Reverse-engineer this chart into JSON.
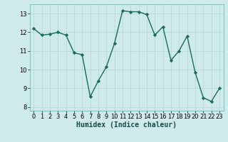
{
  "x": [
    0,
    1,
    2,
    3,
    4,
    5,
    6,
    7,
    8,
    9,
    10,
    11,
    12,
    13,
    14,
    15,
    16,
    17,
    18,
    19,
    20,
    21,
    22,
    23
  ],
  "y": [
    12.2,
    11.85,
    11.9,
    12.0,
    11.85,
    10.9,
    10.8,
    8.55,
    9.4,
    10.15,
    11.4,
    13.15,
    13.1,
    13.1,
    12.95,
    11.85,
    12.3,
    10.5,
    11.0,
    11.8,
    9.85,
    8.5,
    8.3,
    9.0
  ],
  "line_color": "#1a6b5a",
  "marker": "D",
  "markersize": 2.2,
  "linewidth": 1.0,
  "xlabel": "Humidex (Indice chaleur)",
  "xlabel_fontsize": 7,
  "xlim": [
    -0.5,
    23.5
  ],
  "ylim": [
    7.8,
    13.5
  ],
  "yticks": [
    8,
    9,
    10,
    11,
    12,
    13
  ],
  "xticks": [
    0,
    1,
    2,
    3,
    4,
    5,
    6,
    7,
    8,
    9,
    10,
    11,
    12,
    13,
    14,
    15,
    16,
    17,
    18,
    19,
    20,
    21,
    22,
    23
  ],
  "background_color": "#ceeaea",
  "grid_color": "#b8d4d4",
  "tick_fontsize": 6.0
}
